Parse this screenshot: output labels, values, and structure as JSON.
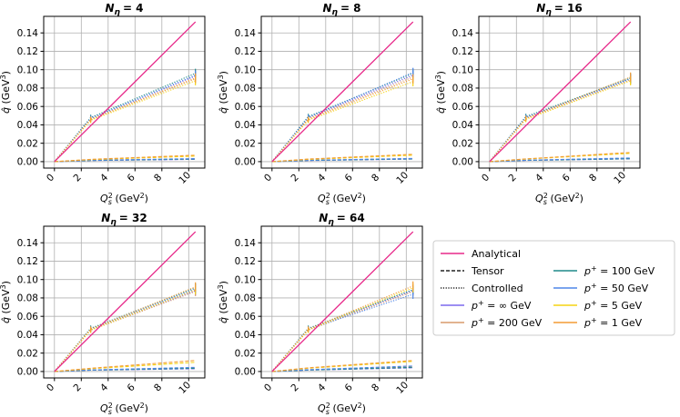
{
  "chart_data": {
    "type": "line",
    "x": [
      0,
      2.7,
      10.5
    ],
    "xlabel": "Q_s^2 (GeV^2)",
    "ylabel": "q̂ (GeV^3)",
    "xlim": [
      -0.8,
      11.2
    ],
    "ylim": [
      -0.007,
      0.158
    ],
    "xticks": [
      0,
      2,
      4,
      6,
      8,
      10
    ],
    "yticks": [
      0.0,
      0.02,
      0.04,
      0.06,
      0.08,
      0.1,
      0.12,
      0.14
    ],
    "ytick_labels": [
      "0.00",
      "0.02",
      "0.04",
      "0.06",
      "0.08",
      "0.10",
      "0.12",
      "0.14"
    ],
    "grid": true,
    "analytical_slope": 0.01447,
    "series_styles": [
      {
        "name": "Analytical",
        "color": "#e7298a",
        "dash": "solid"
      },
      {
        "name": "Tensor",
        "color": "#222222",
        "dash": "dashed"
      },
      {
        "name": "Controlled",
        "color": "#222222",
        "dash": "dotted"
      },
      {
        "name": "p⁺ = ∞ GeV",
        "color": "#7b68ee"
      },
      {
        "name": "p⁺ = 200 GeV",
        "color": "#d99a6c"
      },
      {
        "name": "p⁺ = 100 GeV",
        "color": "#1f8a8a"
      },
      {
        "name": "p⁺ = 50 GeV",
        "color": "#4f86e8"
      },
      {
        "name": "p⁺ = 5 GeV",
        "color": "#f5d312"
      },
      {
        "name": "p⁺ = 1 GeV",
        "color": "#f39c34"
      }
    ],
    "panels": [
      {
        "title_sym": "N",
        "title_sub": "η",
        "title_val": "= 4",
        "tensor": {
          "p_inf": [
            0,
            0.0012,
            0.0025
          ],
          "p200": [
            0,
            0.0014,
            0.003
          ],
          "p100": [
            0,
            0.0013,
            0.0028
          ],
          "p50": [
            0,
            0.0015,
            0.0033
          ],
          "p5": [
            0,
            0.0022,
            0.006
          ],
          "p1": [
            0,
            0.0025,
            0.007
          ]
        },
        "controlled": {
          "p_inf": [
            0,
            0.047,
            0.093
          ],
          "p200": [
            0,
            0.046,
            0.09
          ],
          "p100": [
            0,
            0.048,
            0.096
          ],
          "p50": [
            0,
            0.047,
            0.094
          ],
          "p5": [
            0,
            0.045,
            0.088
          ],
          "p1": [
            0,
            0.046,
            0.091
          ]
        }
      },
      {
        "title_sym": "N",
        "title_sub": "η",
        "title_val": "= 8",
        "tensor": {
          "p_inf": [
            0,
            0.0012,
            0.0028
          ],
          "p200": [
            0,
            0.0014,
            0.0032
          ],
          "p100": [
            0,
            0.0013,
            0.003
          ],
          "p50": [
            0,
            0.0015,
            0.0035
          ],
          "p5": [
            0,
            0.0024,
            0.007
          ],
          "p1": [
            0,
            0.0028,
            0.008
          ]
        },
        "controlled": {
          "p_inf": [
            0,
            0.048,
            0.094
          ],
          "p200": [
            0,
            0.047,
            0.092
          ],
          "p100": [
            0,
            0.049,
            0.096
          ],
          "p50": [
            0,
            0.048,
            0.097
          ],
          "p5": [
            0,
            0.045,
            0.087
          ],
          "p1": [
            0,
            0.046,
            0.09
          ]
        }
      },
      {
        "title_sym": "N",
        "title_sub": "η",
        "title_val": "= 16",
        "tensor": {
          "p_inf": [
            0,
            0.0013,
            0.003
          ],
          "p200": [
            0,
            0.0015,
            0.0035
          ],
          "p100": [
            0,
            0.0014,
            0.0032
          ],
          "p50": [
            0,
            0.0016,
            0.004
          ],
          "p5": [
            0,
            0.0028,
            0.009
          ],
          "p1": [
            0,
            0.003,
            0.01
          ]
        },
        "controlled": {
          "p_inf": [
            0,
            0.048,
            0.09
          ],
          "p200": [
            0,
            0.047,
            0.089
          ],
          "p100": [
            0,
            0.049,
            0.091
          ],
          "p50": [
            0,
            0.048,
            0.09
          ],
          "p5": [
            0,
            0.046,
            0.088
          ],
          "p1": [
            0,
            0.047,
            0.092
          ]
        }
      },
      {
        "title_sym": "N",
        "title_sub": "η",
        "title_val": "= 32",
        "tensor": {
          "p_inf": [
            0,
            0.0014,
            0.003
          ],
          "p200": [
            0,
            0.0016,
            0.004
          ],
          "p100": [
            0,
            0.0015,
            0.0035
          ],
          "p50": [
            0,
            0.0017,
            0.0045
          ],
          "p5": [
            0,
            0.003,
            0.01
          ],
          "p1": [
            0,
            0.0035,
            0.012
          ]
        },
        "controlled": {
          "p_inf": [
            0,
            0.046,
            0.088
          ],
          "p200": [
            0,
            0.045,
            0.087
          ],
          "p100": [
            0,
            0.047,
            0.091
          ],
          "p50": [
            0,
            0.046,
            0.09
          ],
          "p5": [
            0,
            0.045,
            0.089
          ],
          "p1": [
            0,
            0.046,
            0.092
          ]
        }
      },
      {
        "title_sym": "N",
        "title_sub": "η",
        "title_val": "= 64",
        "tensor": {
          "p_inf": [
            0,
            0.0015,
            0.004
          ],
          "p200": [
            0,
            0.0018,
            0.005
          ],
          "p100": [
            0,
            0.0016,
            0.0045
          ],
          "p50": [
            0,
            0.002,
            0.006
          ],
          "p5": [
            0,
            0.0035,
            0.011
          ],
          "p1": [
            0,
            0.004,
            0.012
          ]
        },
        "controlled": {
          "p_inf": [
            0,
            0.046,
            0.088
          ],
          "p200": [
            0,
            0.045,
            0.087
          ],
          "p100": [
            0,
            0.047,
            0.089
          ],
          "p50": [
            0,
            0.046,
            0.084
          ],
          "p5": [
            0,
            0.045,
            0.091
          ],
          "p1": [
            0,
            0.046,
            0.093
          ]
        }
      }
    ],
    "legend": {
      "col1": [
        {
          "label": "Analytical",
          "color": "#e7298a",
          "dash": "solid"
        },
        {
          "label": "Tensor",
          "color": "#222222",
          "dash": "dashed"
        },
        {
          "label": "Controlled",
          "color": "#222222",
          "dash": "dotted"
        },
        {
          "label": "p⁺ = ∞ GeV",
          "color": "#7b68ee",
          "dash": "solid"
        },
        {
          "label": "p⁺ = 200 GeV",
          "color": "#d99a6c",
          "dash": "solid"
        }
      ],
      "col2": [
        {
          "label": "p⁺ = 100 GeV",
          "color": "#1f8a8a",
          "dash": "solid"
        },
        {
          "label": "p⁺ = 50 GeV",
          "color": "#4f86e8",
          "dash": "solid"
        },
        {
          "label": "p⁺ = 5 GeV",
          "color": "#f5d312",
          "dash": "solid"
        },
        {
          "label": "p⁺ = 1 GeV",
          "color": "#f39c34",
          "dash": "solid"
        }
      ]
    }
  }
}
